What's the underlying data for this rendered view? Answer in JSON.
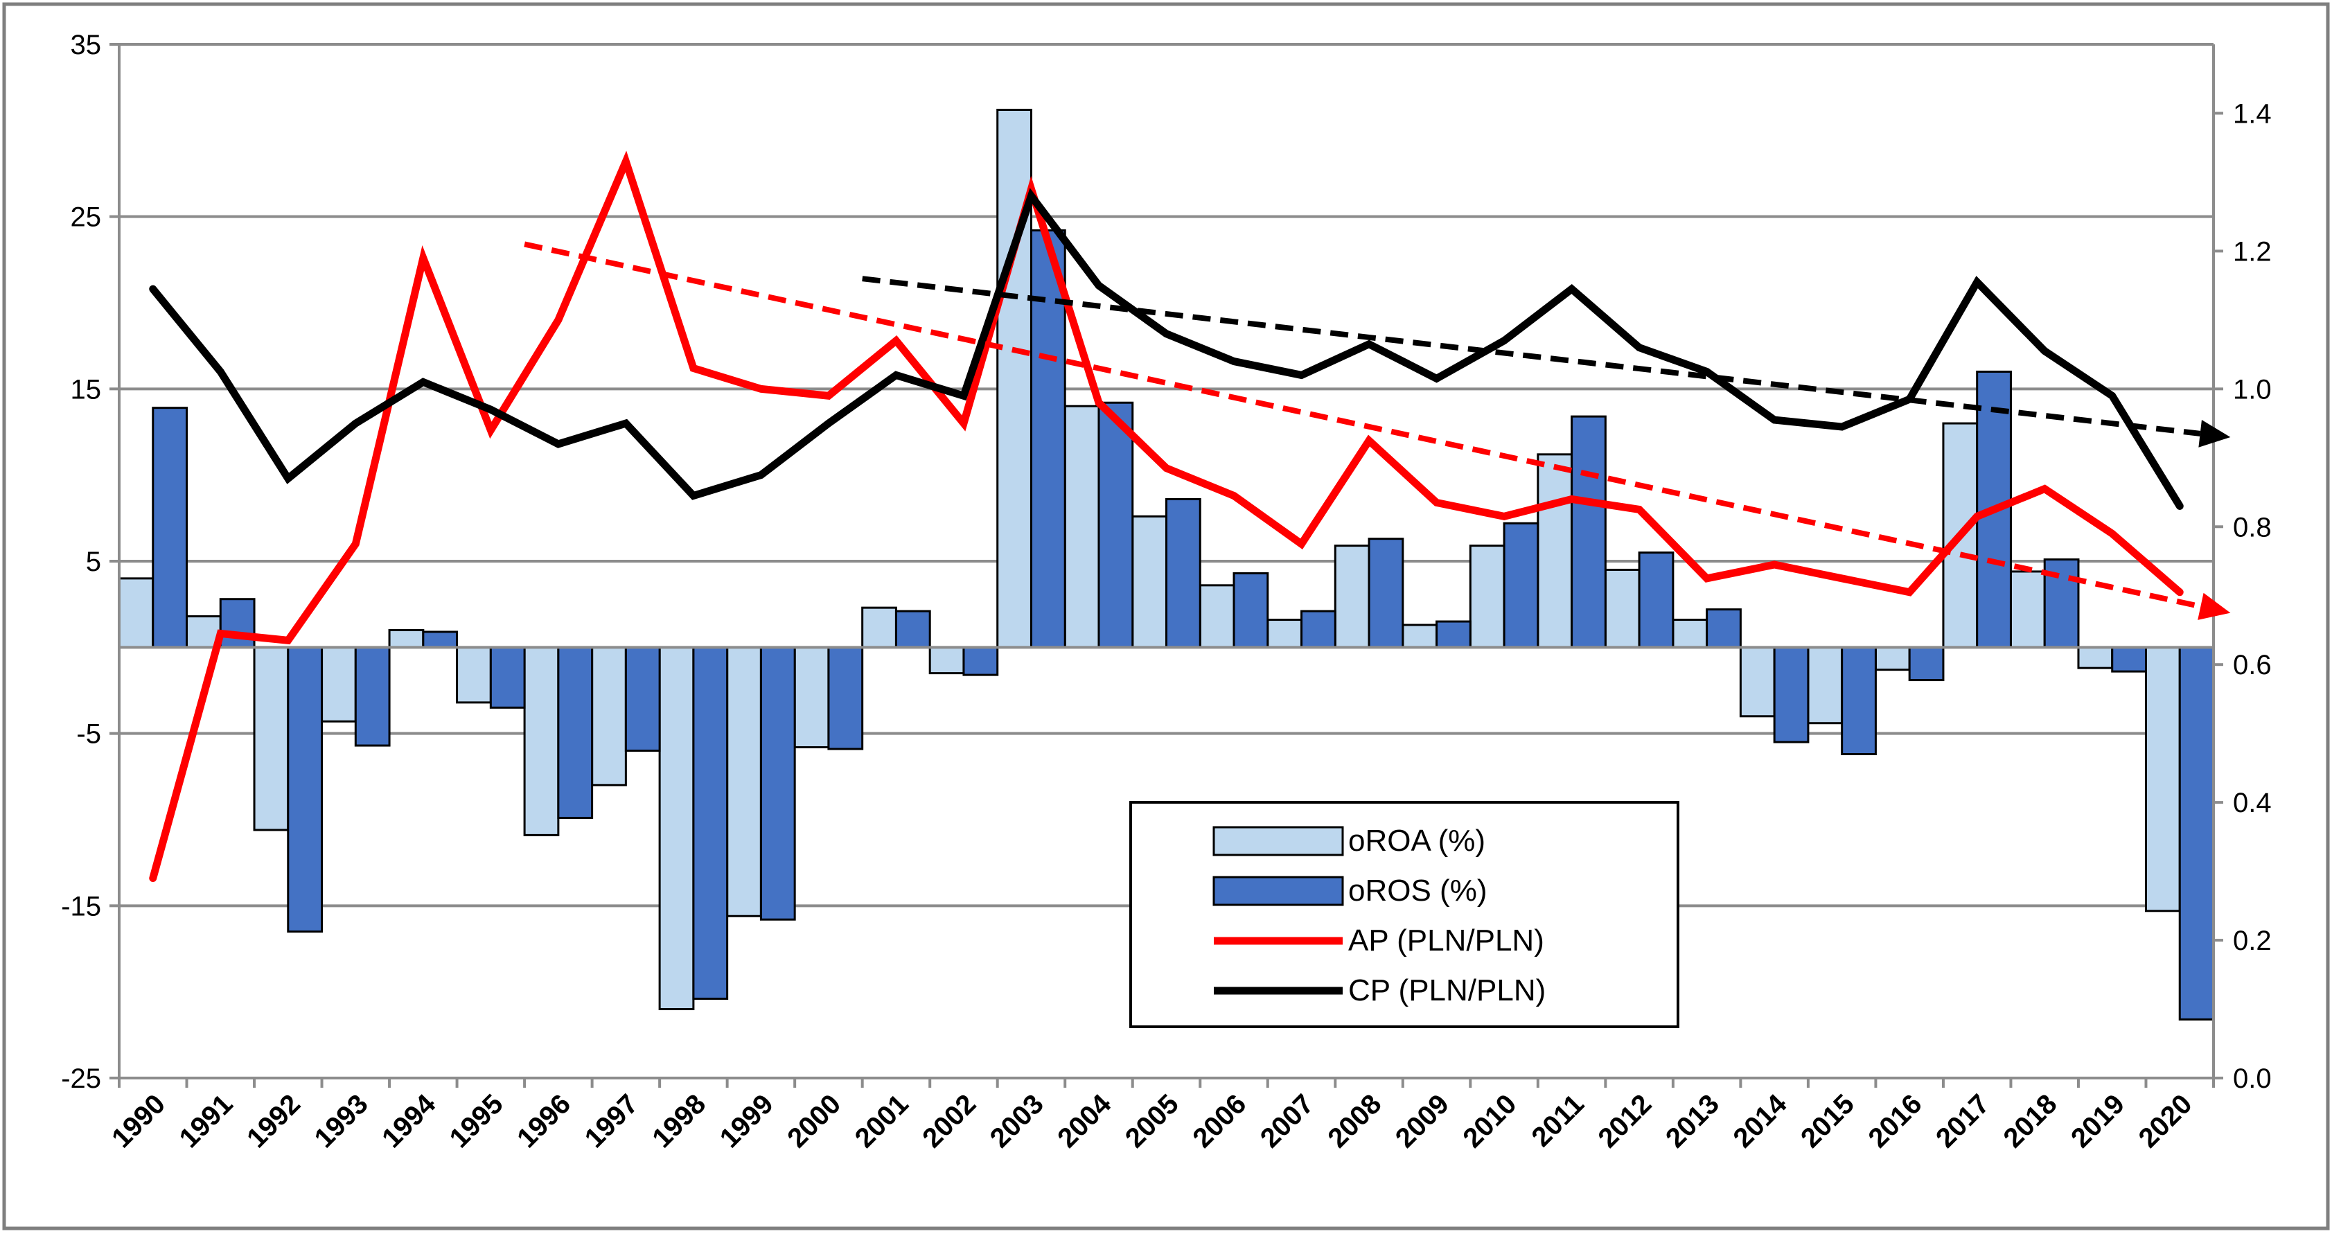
{
  "chart_data": {
    "type": "bar",
    "categories": [
      "1990",
      "1991",
      "1992",
      "1993",
      "1994",
      "1995",
      "1996",
      "1997",
      "1998",
      "1999",
      "2000",
      "2001",
      "2002",
      "2003",
      "2004",
      "2005",
      "2006",
      "2007",
      "2008",
      "2009",
      "2010",
      "2011",
      "2012",
      "2013",
      "2014",
      "2015",
      "2016",
      "2017",
      "2018",
      "2019",
      "2020"
    ],
    "left_axis": {
      "ylim": [
        -25,
        35
      ],
      "ticks": [
        "35",
        "25",
        "15",
        "5",
        "-5",
        "-15",
        "-25"
      ],
      "tick_values": [
        35,
        25,
        15,
        5,
        -5,
        -15,
        -25
      ]
    },
    "right_axis": {
      "ylim": [
        0,
        1.5
      ],
      "ticks": [
        "1.4",
        "1.2",
        "1.0",
        "0.8",
        "0.6",
        "0.4",
        "0.2",
        "0.0"
      ],
      "tick_values": [
        1.4,
        1.2,
        1.0,
        0.8,
        0.6,
        0.4,
        0.2,
        0.0
      ]
    },
    "series": [
      {
        "name": "oROA (%)",
        "kind": "bar",
        "axis": "left",
        "color": "#bdd7ee",
        "values": [
          4.0,
          1.8,
          -10.6,
          -4.3,
          1.0,
          -3.2,
          -10.9,
          -8.0,
          -21.0,
          -15.6,
          -5.8,
          2.3,
          -1.5,
          31.2,
          14.0,
          7.6,
          3.6,
          1.6,
          5.9,
          1.3,
          5.9,
          11.2,
          4.5,
          1.6,
          -4.0,
          -4.4,
          -1.3,
          13.0,
          4.4,
          -1.2,
          -15.3
        ]
      },
      {
        "name": "oROS (%)",
        "kind": "bar",
        "axis": "left",
        "color": "#4472c4",
        "values": [
          13.9,
          2.8,
          -16.5,
          -5.7,
          0.9,
          -3.5,
          -9.9,
          -6.0,
          -20.4,
          -15.8,
          -5.9,
          2.1,
          -1.6,
          24.2,
          14.2,
          8.6,
          4.3,
          2.1,
          6.3,
          1.5,
          7.2,
          13.4,
          5.5,
          2.2,
          -5.5,
          -6.2,
          -1.9,
          16.0,
          5.1,
          -1.4,
          -21.6
        ]
      },
      {
        "name": "AP (PLN/PLN)",
        "kind": "line",
        "axis": "right",
        "color": "#ff0000",
        "values": [
          0.29,
          0.645,
          0.635,
          0.775,
          1.19,
          0.94,
          1.1,
          1.33,
          1.03,
          1.0,
          0.99,
          1.07,
          0.95,
          1.29,
          0.98,
          0.885,
          0.845,
          0.775,
          0.925,
          0.835,
          0.815,
          0.84,
          0.825,
          0.725,
          0.745,
          0.725,
          0.705,
          0.815,
          0.855,
          0.79,
          0.705
        ]
      },
      {
        "name": "CP (PLN/PLN)",
        "kind": "line",
        "axis": "right",
        "color": "#000000",
        "values": [
          1.145,
          1.025,
          0.87,
          0.95,
          1.01,
          0.97,
          0.92,
          0.95,
          0.845,
          0.875,
          0.95,
          1.02,
          0.99,
          1.28,
          1.15,
          1.08,
          1.04,
          1.02,
          1.065,
          1.015,
          1.07,
          1.145,
          1.06,
          1.025,
          0.955,
          0.945,
          0.985,
          1.155,
          1.055,
          0.99,
          0.83
        ]
      }
    ],
    "trendlines": [
      {
        "of": "AP (PLN/PLN)",
        "color": "#ff0000",
        "style": "dashed",
        "start_year": 1995.5,
        "start_value": 1.21,
        "end_year": 2020.75,
        "end_value": 0.675
      },
      {
        "of": "CP (PLN/PLN)",
        "color": "#000000",
        "style": "dashed",
        "start_year": 2000.5,
        "start_value": 1.16,
        "end_year": 2020.75,
        "end_value": 0.93
      }
    ],
    "legend": {
      "position": "center-bottom",
      "entries": [
        "oROA (%)",
        "oROS (%)",
        "AP (PLN/PLN)",
        "CP (PLN/PLN)"
      ]
    },
    "grid": true,
    "title": "",
    "xlabel": "",
    "ylabel": ""
  }
}
